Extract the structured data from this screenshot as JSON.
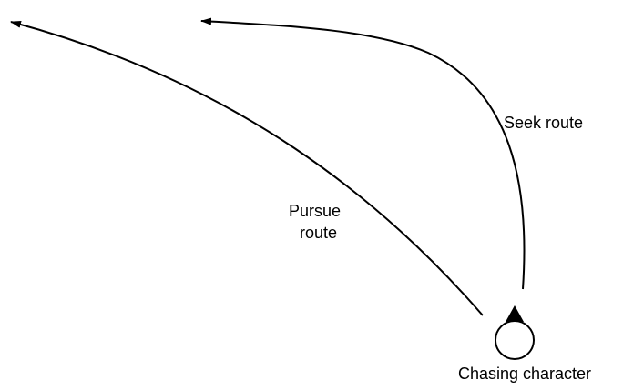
{
  "labels": {
    "seek": [
      "Seek route"
    ],
    "pursue": [
      "Pursue",
      "route"
    ],
    "character": "Chasing character"
  },
  "colors": {
    "stroke": "#000000",
    "fill": "#000000",
    "background": "#ffffff"
  }
}
